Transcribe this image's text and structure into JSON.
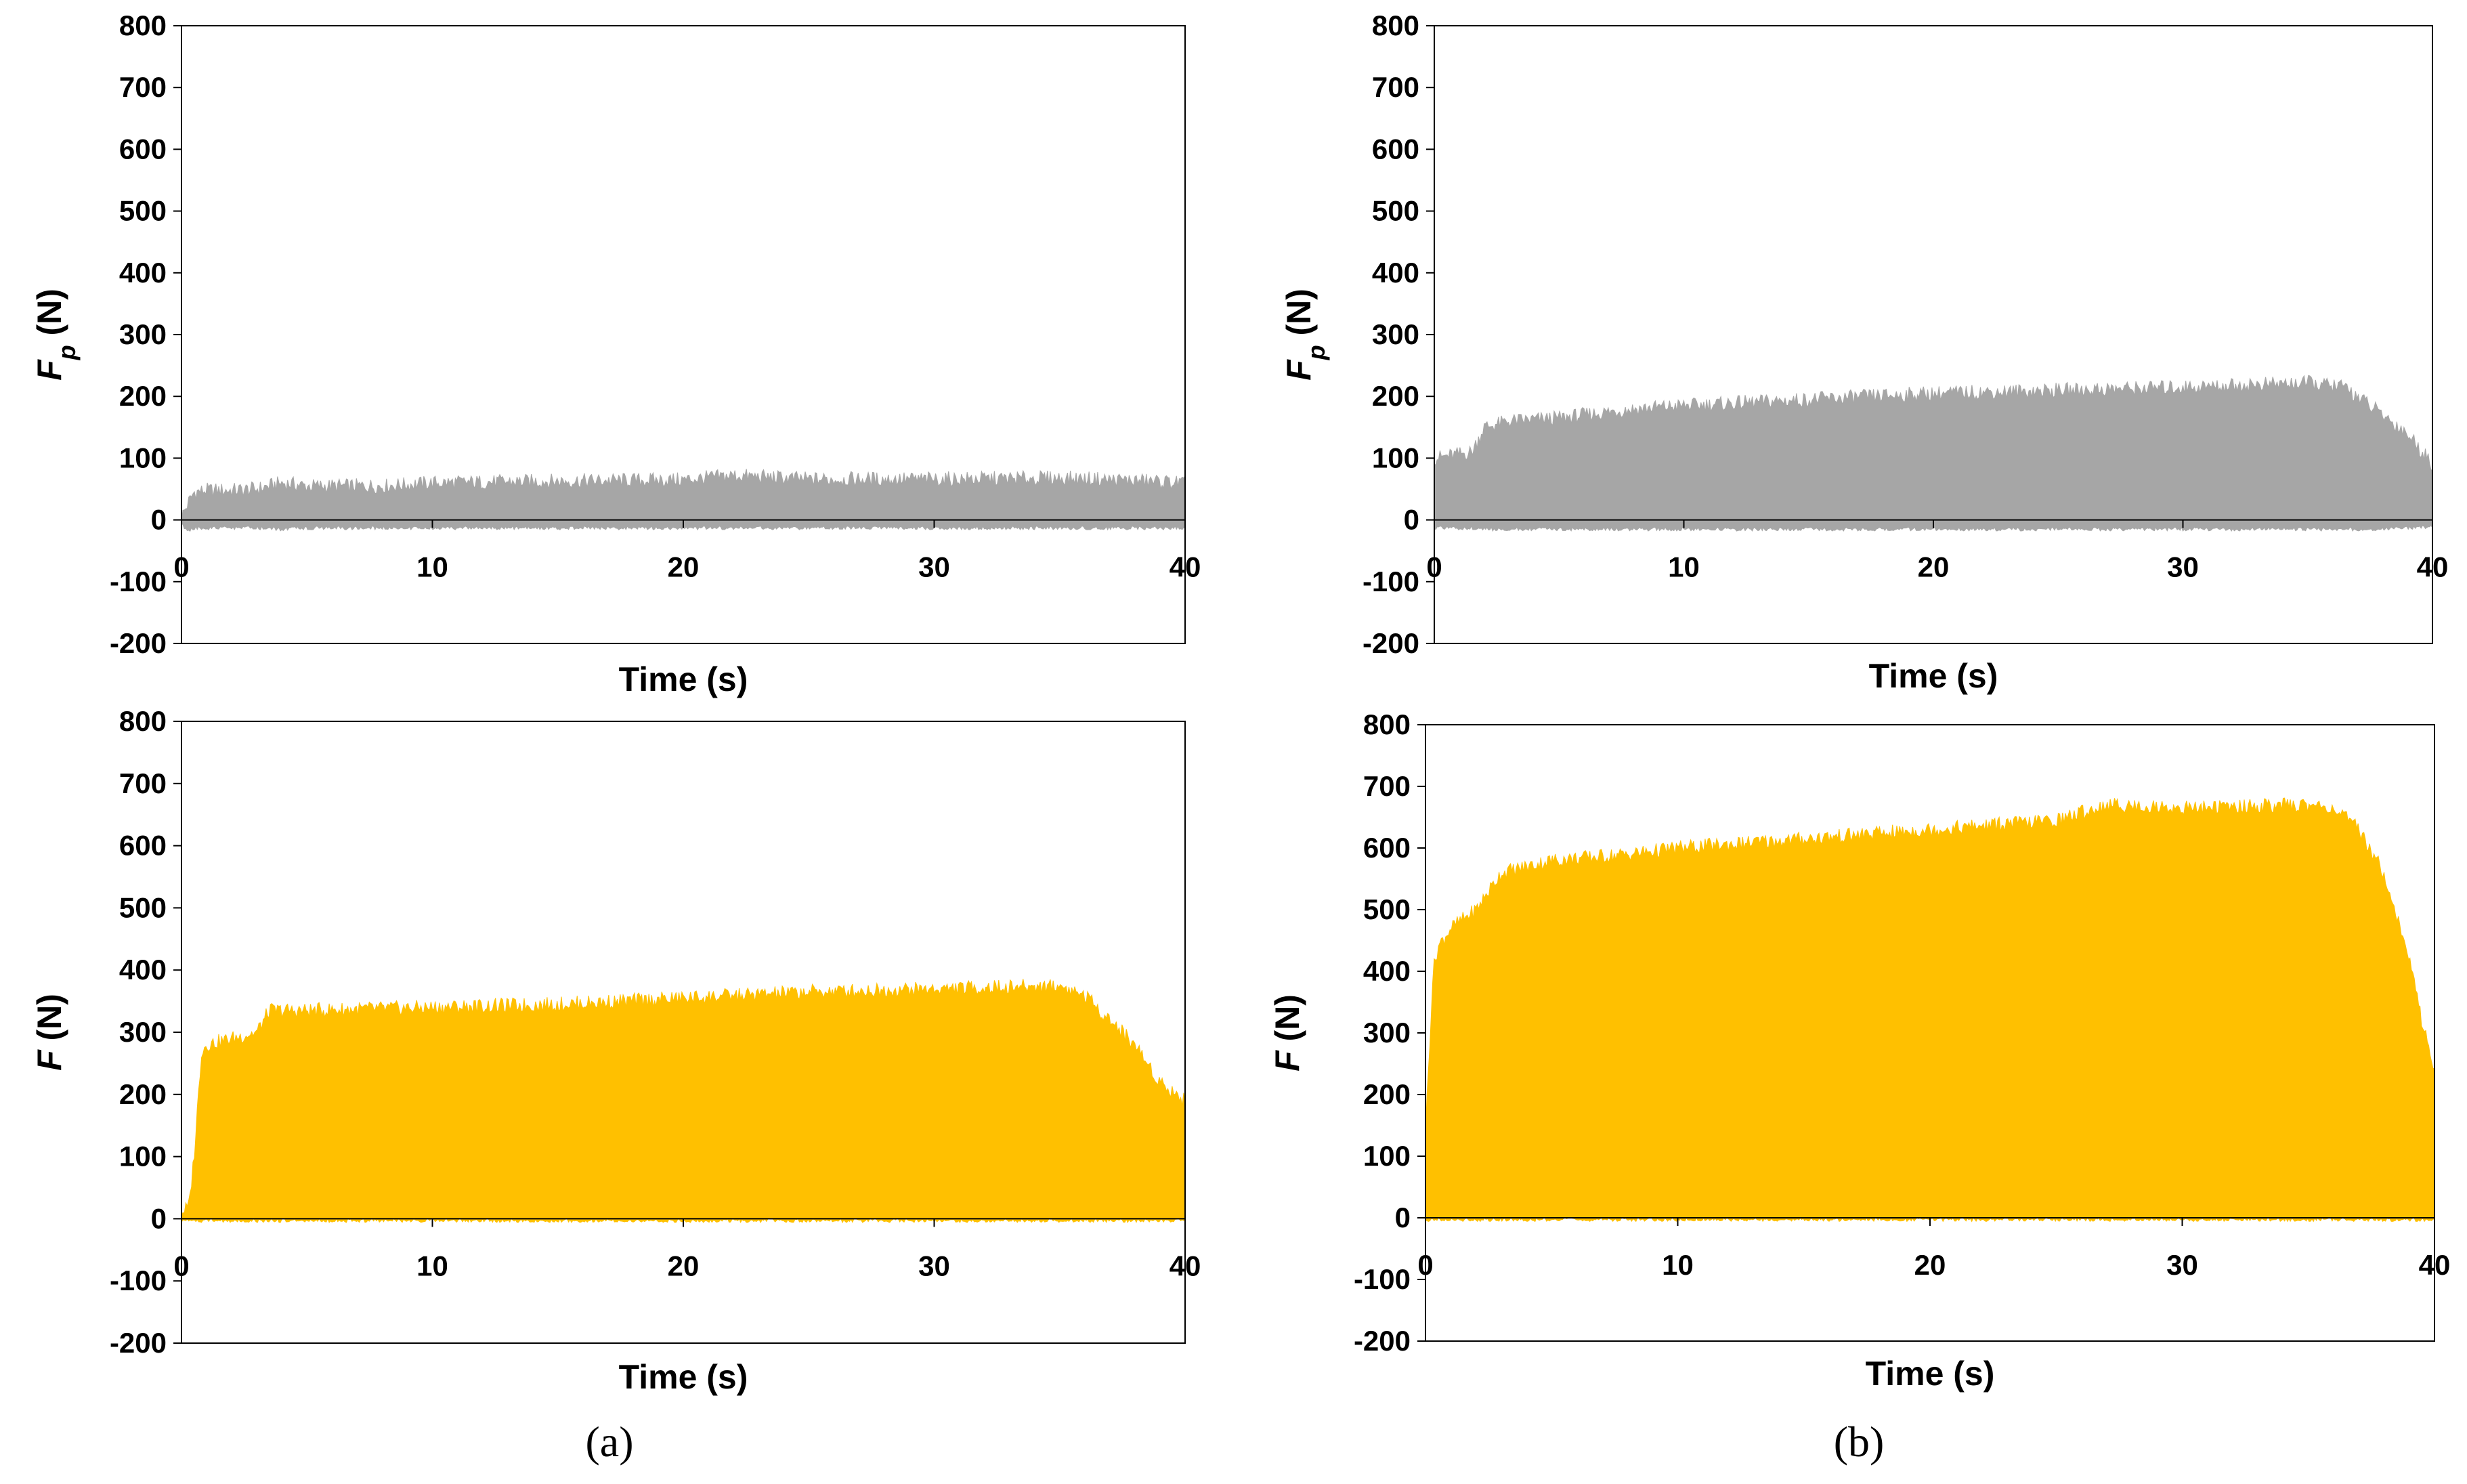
{
  "figure": {
    "caption_left": "(a)",
    "caption_right": "(b)"
  },
  "chart_data": [
    {
      "id": "a-top",
      "type": "area",
      "panel": "a",
      "title": "",
      "xlabel": "Time (s)",
      "ylabel_main": "F",
      "ylabel_sub": "p",
      "ylabel_unit": " (N)",
      "xlim": [
        0,
        40
      ],
      "ylim": [
        -200,
        800
      ],
      "xticks": [
        0,
        10,
        20,
        30,
        40
      ],
      "yticks": [
        -200,
        -100,
        0,
        100,
        200,
        300,
        400,
        500,
        600,
        700,
        800
      ],
      "grid": false,
      "color": "#a6a6a6",
      "series": [
        {
          "name": "Fp",
          "x": [
            0,
            0.3,
            0.5,
            1,
            2,
            3,
            4,
            5,
            8,
            10,
            15,
            20,
            22,
            25,
            30,
            35,
            38,
            40
          ],
          "upper": [
            5,
            30,
            45,
            48,
            48,
            50,
            60,
            55,
            55,
            60,
            63,
            65,
            72,
            66,
            66,
            68,
            64,
            60
          ],
          "lower": [
            -5,
            -15,
            -10,
            -10,
            -10,
            -10,
            -12,
            -10,
            -10,
            -10,
            -10,
            -10,
            -10,
            -10,
            -10,
            -10,
            -10,
            -10
          ]
        }
      ]
    },
    {
      "id": "b-top",
      "type": "area",
      "panel": "b",
      "title": "",
      "xlabel": "Time (s)",
      "ylabel_main": "F",
      "ylabel_sub": "p",
      "ylabel_unit": " (N)",
      "xlim": [
        0,
        40
      ],
      "ylim": [
        -200,
        800
      ],
      "xticks": [
        0,
        10,
        20,
        30,
        40
      ],
      "yticks": [
        -200,
        -100,
        0,
        100,
        200,
        300,
        400,
        500,
        600,
        700,
        800
      ],
      "grid": false,
      "color": "#a6a6a6",
      "series": [
        {
          "name": "Fp",
          "x": [
            0,
            1.5,
            2,
            3,
            5,
            8,
            10,
            15,
            20,
            25,
            30,
            35,
            36.5,
            37,
            38,
            39,
            40
          ],
          "upper": [
            100,
            110,
            150,
            160,
            165,
            180,
            185,
            195,
            205,
            210,
            215,
            222,
            215,
            200,
            170,
            140,
            90
          ],
          "lower": [
            -10,
            -10,
            -12,
            -12,
            -12,
            -12,
            -12,
            -12,
            -12,
            -12,
            -12,
            -12,
            -12,
            -12,
            -12,
            -10,
            -8
          ]
        }
      ]
    },
    {
      "id": "a-bottom",
      "type": "area",
      "panel": "a",
      "title": "",
      "xlabel": "Time (s)",
      "ylabel_main": "F",
      "ylabel_sub": "",
      "ylabel_unit": " (N)",
      "xlim": [
        0,
        40
      ],
      "ylim": [
        -200,
        800
      ],
      "xticks": [
        0,
        10,
        20,
        30,
        40
      ],
      "yticks": [
        -200,
        -100,
        0,
        100,
        200,
        300,
        400,
        500,
        600,
        700,
        800
      ],
      "grid": false,
      "color": "#ffc000",
      "series": [
        {
          "name": "F",
          "x": [
            0,
            0.3,
            0.5,
            0.8,
            1,
            2,
            3,
            3.5,
            5,
            10,
            15,
            20,
            25,
            30,
            35,
            36,
            37,
            38,
            39,
            40
          ],
          "upper": [
            10,
            20,
            100,
            270,
            280,
            290,
            300,
            335,
            335,
            340,
            345,
            355,
            365,
            370,
            375,
            360,
            320,
            280,
            220,
            190
          ],
          "lower": [
            0,
            0,
            0,
            0,
            0,
            0,
            0,
            0,
            0,
            0,
            0,
            0,
            0,
            0,
            0,
            0,
            0,
            0,
            0,
            0
          ]
        }
      ]
    },
    {
      "id": "b-bottom",
      "type": "area",
      "panel": "b",
      "title": "",
      "xlabel": "Time (s)",
      "ylabel_main": "F",
      "ylabel_sub": "",
      "ylabel_unit": " (N)",
      "xlim": [
        0,
        40
      ],
      "ylim": [
        -200,
        800
      ],
      "xticks": [
        0,
        10,
        20,
        30,
        40
      ],
      "yticks": [
        -200,
        -100,
        0,
        100,
        200,
        300,
        400,
        500,
        600,
        700,
        800
      ],
      "grid": false,
      "color": "#ffc000",
      "series": [
        {
          "name": "F",
          "x": [
            0,
            0.3,
            0.5,
            1,
            2,
            3,
            5,
            8,
            10,
            15,
            20,
            25,
            27,
            30,
            35,
            36,
            37,
            38,
            39,
            39.5,
            40
          ],
          "upper": [
            140,
            400,
            440,
            470,
            500,
            560,
            580,
            590,
            600,
            615,
            630,
            645,
            670,
            665,
            670,
            665,
            630,
            560,
            420,
            320,
            240
          ],
          "lower": [
            0,
            0,
            0,
            0,
            0,
            0,
            0,
            0,
            0,
            0,
            0,
            0,
            0,
            0,
            0,
            0,
            0,
            0,
            0,
            0,
            0
          ]
        }
      ]
    }
  ]
}
